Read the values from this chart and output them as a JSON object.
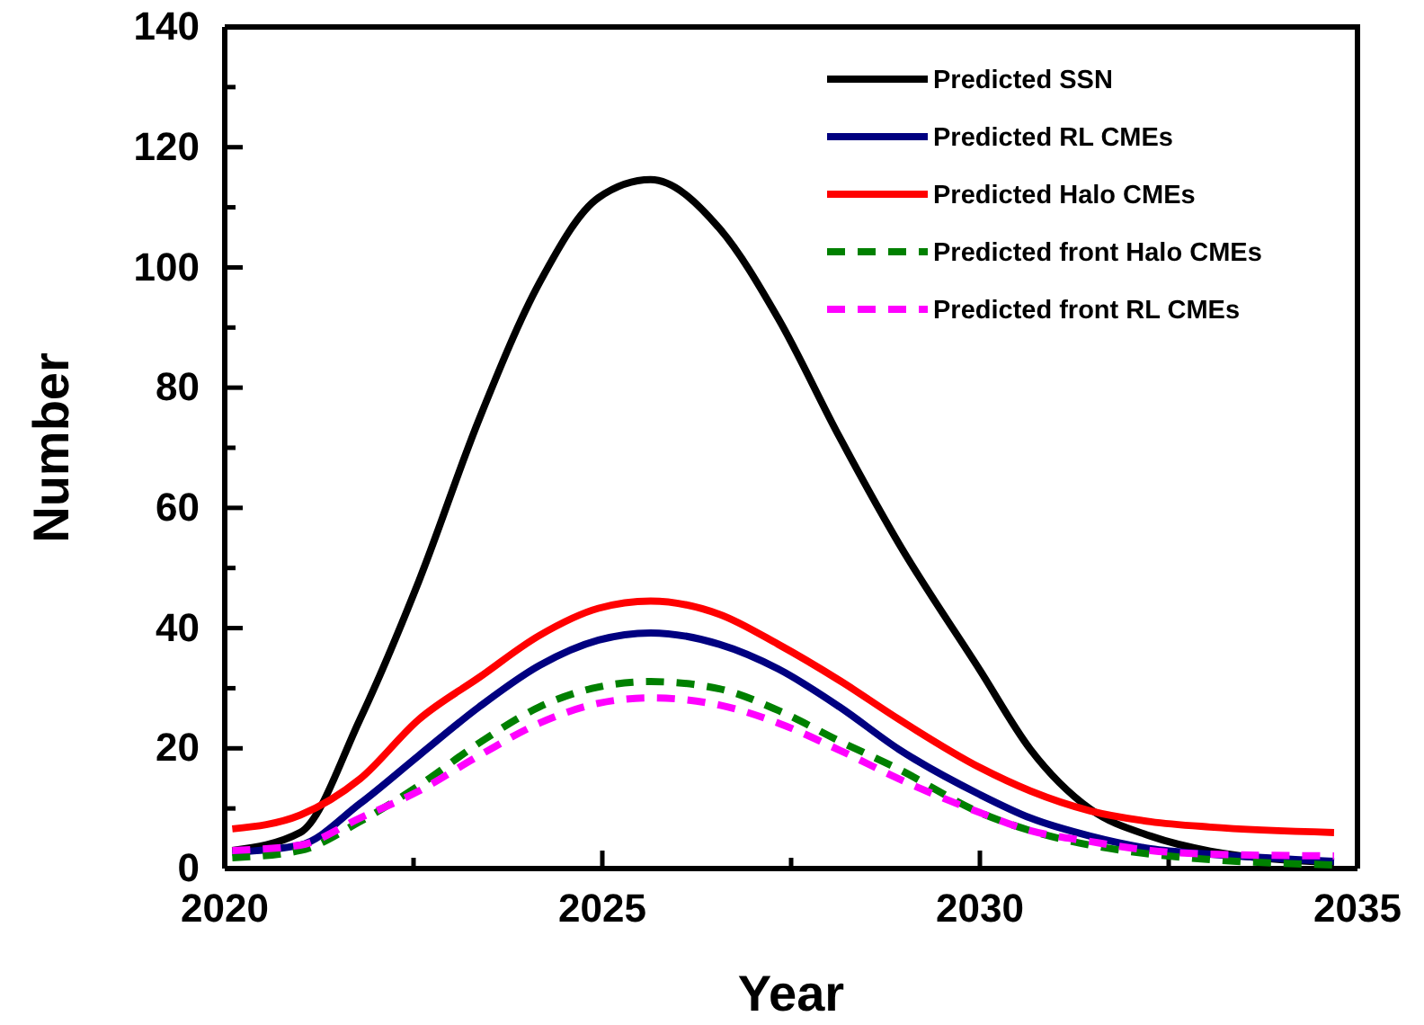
{
  "chart_data": {
    "type": "line",
    "xlabel": "Year",
    "ylabel": "Number",
    "x": [
      2020.1,
      2021.0,
      2021.79,
      2022.57,
      2023.37,
      2024.17,
      2024.95,
      2025.64,
      2026.55,
      2027.33,
      2028.14,
      2028.93,
      2030.0,
      2030.67,
      2031.46,
      2032.26,
      2033.05,
      2034.69
    ],
    "series": [
      {
        "name": "Predicted SSN",
        "color": "#000000",
        "line_style": "solid",
        "values": [
          3.0,
          6.0,
          24.8,
          47.8,
          74.8,
          97.5,
          111.6,
          114.6,
          106.5,
          91.5,
          71.8,
          54,
          33,
          19.8,
          9.9,
          5.4,
          2.9,
          1.0
        ]
      },
      {
        "name": "Predicted RL CMEs",
        "color": "#000080",
        "line_style": "solid",
        "values": [
          2.7,
          3.9,
          10.8,
          18.8,
          26.9,
          33.8,
          38.0,
          39.2,
          37.3,
          33.2,
          26.9,
          19.8,
          12.3,
          8.4,
          5.4,
          3.3,
          2.4,
          1.2
        ]
      },
      {
        "name": "Predicted Halo CMEs",
        "color": "#ff0000",
        "line_style": "solid",
        "values": [
          6.6,
          8.9,
          14.9,
          24.8,
          31.8,
          38.8,
          43.3,
          44.5,
          42.3,
          37.3,
          31.3,
          24.8,
          16.8,
          12.9,
          9.6,
          7.8,
          6.9,
          6.0
        ]
      },
      {
        "name": "Predicted front Halo CMEs",
        "color": "#008000",
        "line_style": "dashed",
        "values": [
          1.8,
          3.0,
          7.8,
          13.8,
          20.9,
          26.9,
          30.2,
          31.1,
          29.9,
          26.3,
          21.2,
          16.5,
          9.3,
          6.3,
          3.9,
          2.4,
          1.5,
          0.6
        ]
      },
      {
        "name": "Predicted front RL CMEs",
        "color": "#ff00ff",
        "line_style": "dashed",
        "values": [
          3.0,
          3.9,
          8.4,
          12.9,
          18.8,
          24.2,
          27.5,
          28.4,
          27.2,
          24.2,
          19.7,
          14.9,
          9.3,
          6.3,
          4.5,
          3.0,
          2.4,
          2.1
        ]
      }
    ],
    "xlim": [
      2020,
      2035
    ],
    "xticks": [
      2020,
      {
        "value": 2022.5,
        "label": null
      },
      2025,
      {
        "value": 2027.5,
        "label": null
      },
      2030,
      {
        "value": 2032.5,
        "label": null
      },
      2035
    ],
    "ylim": [
      0,
      140
    ],
    "yticks": [
      0,
      {
        "value": 10,
        "label": null
      },
      20,
      {
        "value": 30,
        "label": null
      },
      40,
      {
        "value": 50,
        "label": null
      },
      60,
      {
        "value": 70,
        "label": null
      },
      80,
      {
        "value": 90,
        "label": null
      },
      100,
      {
        "value": 110,
        "label": null
      },
      120,
      {
        "value": 130,
        "label": null
      },
      140
    ],
    "grid": false,
    "legend": "top right",
    "marker": "none"
  }
}
